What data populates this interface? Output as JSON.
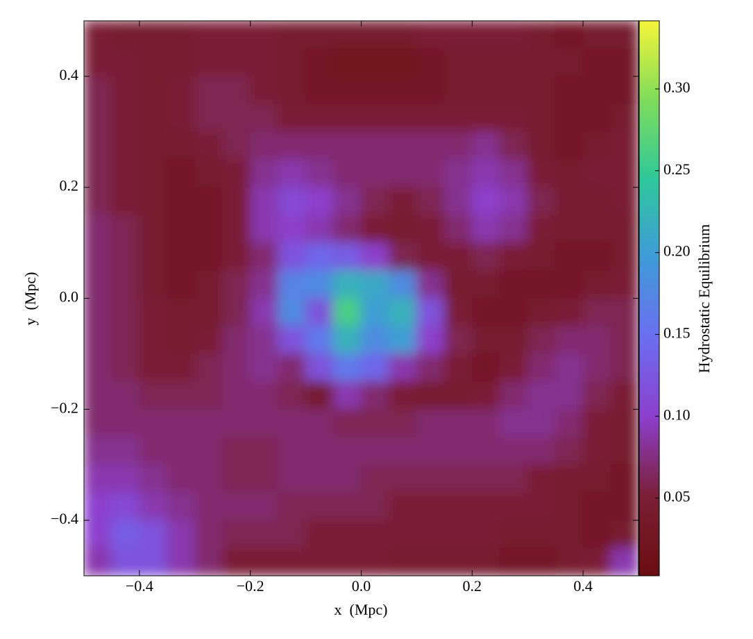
{
  "chart_data": {
    "type": "heatmap",
    "xlabel": "x  (Mpc)",
    "ylabel": "y  (Mpc)",
    "colorbar_label": "Hydrostatic Equilibrium",
    "xlim": [
      -0.5,
      0.5
    ],
    "ylim": [
      -0.5,
      0.5
    ],
    "xticks": [
      {
        "value": -0.4,
        "label": "−0.4"
      },
      {
        "value": -0.2,
        "label": "−0.2"
      },
      {
        "value": 0,
        "label": "0.0"
      },
      0.2,
      0.4
    ],
    "yticks": [
      {
        "value": -0.4,
        "label": "−0.4"
      },
      {
        "value": -0.2,
        "label": "−0.2"
      },
      {
        "value": 0,
        "label": "0.0"
      },
      0.2,
      0.4
    ],
    "clim": [
      0.0025,
      0.3416
    ],
    "cticks": [
      0.05,
      {
        "value": 0.1,
        "label": "0.10"
      },
      0.15,
      {
        "value": 0.2,
        "label": "0.20"
      },
      0.25,
      {
        "value": 0.3,
        "label": "0.30"
      }
    ],
    "colormap": [
      "#6a0d10",
      "#7a1f35",
      "#8c3fcc",
      "#6b6ef0",
      "#3f9ad8",
      "#2ec89a",
      "#7fdc5a",
      "#f5f53a"
    ],
    "z": [
      [
        0.05,
        0.04,
        0.04,
        0.04,
        0.05,
        0.05,
        0.05,
        0.04,
        0.04,
        0.04,
        0.04,
        0.04,
        0.05,
        0.05,
        0.05,
        0.05,
        0.04,
        0.03,
        0.04,
        0.04
      ],
      [
        0.05,
        0.05,
        0.04,
        0.04,
        0.05,
        0.05,
        0.05,
        0.04,
        0.03,
        0.02,
        0.02,
        0.02,
        0.03,
        0.04,
        0.04,
        0.04,
        0.04,
        0.04,
        0.03,
        0.03
      ],
      [
        0.06,
        0.05,
        0.04,
        0.05,
        0.06,
        0.06,
        0.05,
        0.04,
        0.03,
        0.03,
        0.03,
        0.03,
        0.03,
        0.04,
        0.04,
        0.04,
        0.04,
        0.03,
        0.03,
        0.03
      ],
      [
        0.06,
        0.05,
        0.04,
        0.05,
        0.06,
        0.06,
        0.06,
        0.05,
        0.05,
        0.05,
        0.05,
        0.05,
        0.05,
        0.05,
        0.05,
        0.05,
        0.04,
        0.03,
        0.03,
        0.04
      ],
      [
        0.06,
        0.05,
        0.04,
        0.04,
        0.05,
        0.06,
        0.07,
        0.07,
        0.07,
        0.07,
        0.07,
        0.07,
        0.07,
        0.07,
        0.08,
        0.06,
        0.04,
        0.03,
        0.04,
        0.05
      ],
      [
        0.06,
        0.05,
        0.04,
        0.03,
        0.04,
        0.05,
        0.08,
        0.09,
        0.08,
        0.07,
        0.07,
        0.07,
        0.07,
        0.08,
        0.09,
        0.08,
        0.05,
        0.04,
        0.05,
        0.05
      ],
      [
        0.06,
        0.05,
        0.04,
        0.03,
        0.03,
        0.05,
        0.09,
        0.11,
        0.1,
        0.08,
        0.06,
        0.05,
        0.06,
        0.08,
        0.1,
        0.09,
        0.06,
        0.04,
        0.04,
        0.05
      ],
      [
        0.07,
        0.06,
        0.04,
        0.03,
        0.03,
        0.05,
        0.09,
        0.1,
        0.09,
        0.07,
        0.05,
        0.04,
        0.05,
        0.07,
        0.09,
        0.08,
        0.05,
        0.04,
        0.04,
        0.04
      ],
      [
        0.07,
        0.06,
        0.04,
        0.03,
        0.03,
        0.05,
        0.07,
        0.12,
        0.14,
        0.13,
        0.1,
        0.06,
        0.05,
        0.05,
        0.06,
        0.05,
        0.04,
        0.03,
        0.03,
        0.04
      ],
      [
        0.07,
        0.06,
        0.04,
        0.03,
        0.04,
        0.06,
        0.08,
        0.17,
        0.18,
        0.22,
        0.21,
        0.18,
        0.08,
        0.04,
        0.04,
        0.03,
        0.03,
        0.03,
        0.04,
        0.05
      ],
      [
        0.07,
        0.06,
        0.05,
        0.04,
        0.04,
        0.06,
        0.09,
        0.18,
        0.12,
        0.26,
        0.2,
        0.22,
        0.12,
        0.05,
        0.03,
        0.03,
        0.04,
        0.05,
        0.06,
        0.06
      ],
      [
        0.07,
        0.06,
        0.05,
        0.04,
        0.05,
        0.07,
        0.08,
        0.12,
        0.16,
        0.22,
        0.18,
        0.2,
        0.1,
        0.06,
        0.04,
        0.04,
        0.06,
        0.07,
        0.07,
        0.06
      ],
      [
        0.07,
        0.06,
        0.05,
        0.05,
        0.06,
        0.07,
        0.08,
        0.07,
        0.12,
        0.16,
        0.14,
        0.09,
        0.07,
        0.05,
        0.03,
        0.05,
        0.07,
        0.08,
        0.07,
        0.06
      ],
      [
        0.07,
        0.07,
        0.06,
        0.06,
        0.06,
        0.07,
        0.07,
        0.06,
        0.04,
        0.09,
        0.07,
        0.05,
        0.04,
        0.04,
        0.05,
        0.07,
        0.08,
        0.08,
        0.06,
        0.05
      ],
      [
        0.07,
        0.07,
        0.07,
        0.07,
        0.07,
        0.07,
        0.07,
        0.07,
        0.07,
        0.06,
        0.06,
        0.06,
        0.07,
        0.07,
        0.07,
        0.08,
        0.08,
        0.07,
        0.05,
        0.04
      ],
      [
        0.08,
        0.08,
        0.07,
        0.07,
        0.07,
        0.06,
        0.06,
        0.07,
        0.07,
        0.07,
        0.07,
        0.07,
        0.07,
        0.07,
        0.07,
        0.07,
        0.07,
        0.06,
        0.05,
        0.04
      ],
      [
        0.09,
        0.09,
        0.08,
        0.07,
        0.07,
        0.06,
        0.06,
        0.07,
        0.07,
        0.07,
        0.06,
        0.06,
        0.06,
        0.06,
        0.06,
        0.06,
        0.05,
        0.04,
        0.04,
        0.03
      ],
      [
        0.1,
        0.11,
        0.09,
        0.08,
        0.07,
        0.07,
        0.07,
        0.06,
        0.06,
        0.06,
        0.06,
        0.05,
        0.05,
        0.05,
        0.05,
        0.05,
        0.05,
        0.04,
        0.03,
        0.03
      ],
      [
        0.1,
        0.13,
        0.12,
        0.09,
        0.07,
        0.06,
        0.06,
        0.06,
        0.05,
        0.05,
        0.05,
        0.05,
        0.05,
        0.05,
        0.05,
        0.04,
        0.04,
        0.04,
        0.03,
        0.04
      ],
      [
        0.09,
        0.12,
        0.12,
        0.09,
        0.07,
        0.05,
        0.05,
        0.05,
        0.05,
        0.05,
        0.05,
        0.04,
        0.04,
        0.04,
        0.04,
        0.03,
        0.03,
        0.04,
        0.05,
        0.09
      ]
    ]
  }
}
